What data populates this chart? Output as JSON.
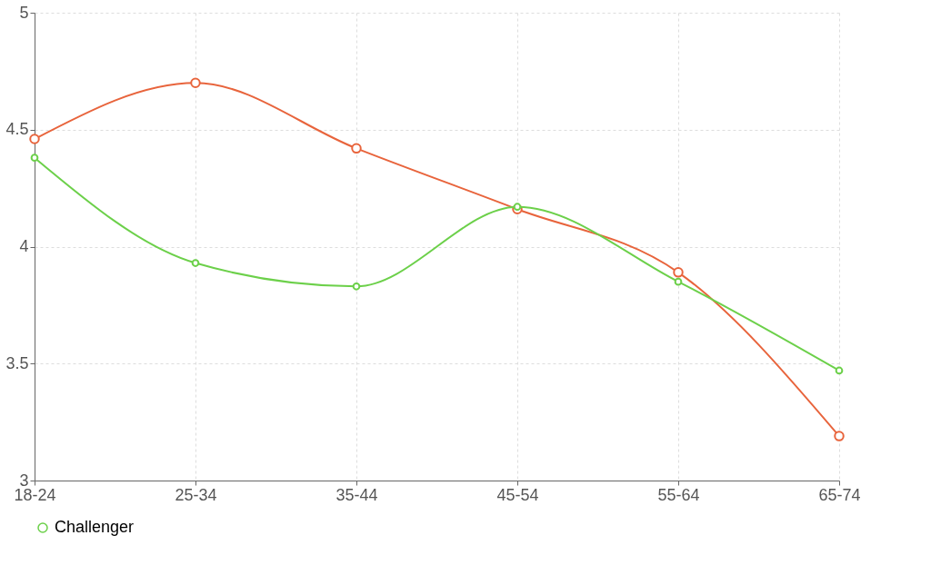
{
  "chart_data": {
    "type": "line",
    "categories": [
      "18-24",
      "25-34",
      "35-44",
      "45-54",
      "55-64",
      "65-74"
    ],
    "series": [
      {
        "color": "#e8643c",
        "values": [
          4.46,
          4.7,
          4.42,
          4.16,
          3.89,
          3.19
        ]
      },
      {
        "name": "Challenger",
        "color": "#6cd04a",
        "values": [
          4.38,
          3.93,
          3.83,
          4.17,
          3.85,
          3.47
        ]
      }
    ],
    "ylim": [
      3,
      5
    ],
    "yticks": [
      3,
      3.5,
      4,
      4.5,
      5
    ],
    "grid": true,
    "legend": "bottom",
    "marker": "circle",
    "line_style": "solid"
  }
}
